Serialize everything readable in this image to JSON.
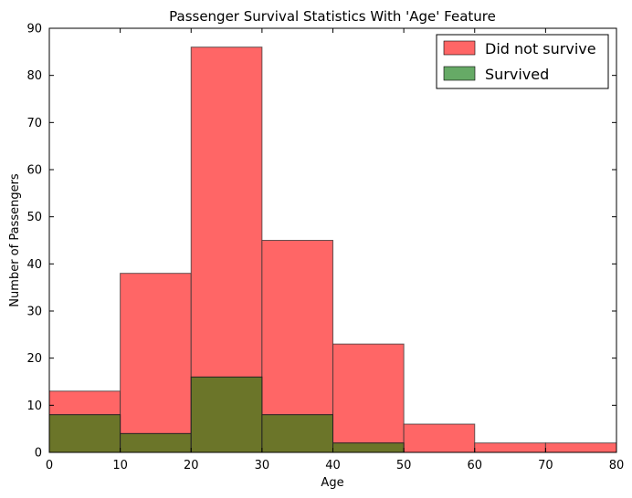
{
  "chart_data": {
    "type": "bar",
    "title": "Passenger Survival Statistics With 'Age' Feature",
    "xlabel": "Age",
    "ylabel": "Number of Passengers",
    "xlim": [
      0,
      80
    ],
    "ylim": [
      0,
      90
    ],
    "xticks": [
      0,
      10,
      20,
      30,
      40,
      50,
      60,
      70,
      80
    ],
    "yticks": [
      0,
      10,
      20,
      30,
      40,
      50,
      60,
      70,
      80,
      90
    ],
    "bin_edges": [
      0,
      10,
      20,
      30,
      40,
      50,
      60,
      70,
      80
    ],
    "grid": false,
    "legend_position": "top-right",
    "series": [
      {
        "name": "Did not survive",
        "color": "#ff6666",
        "values": [
          13,
          38,
          86,
          45,
          23,
          6,
          2,
          2
        ]
      },
      {
        "name": "Survived",
        "color": "#66aa66",
        "overlap_color": "#6b7529",
        "values": [
          8,
          4,
          16,
          8,
          2,
          0,
          0,
          0
        ]
      }
    ]
  }
}
